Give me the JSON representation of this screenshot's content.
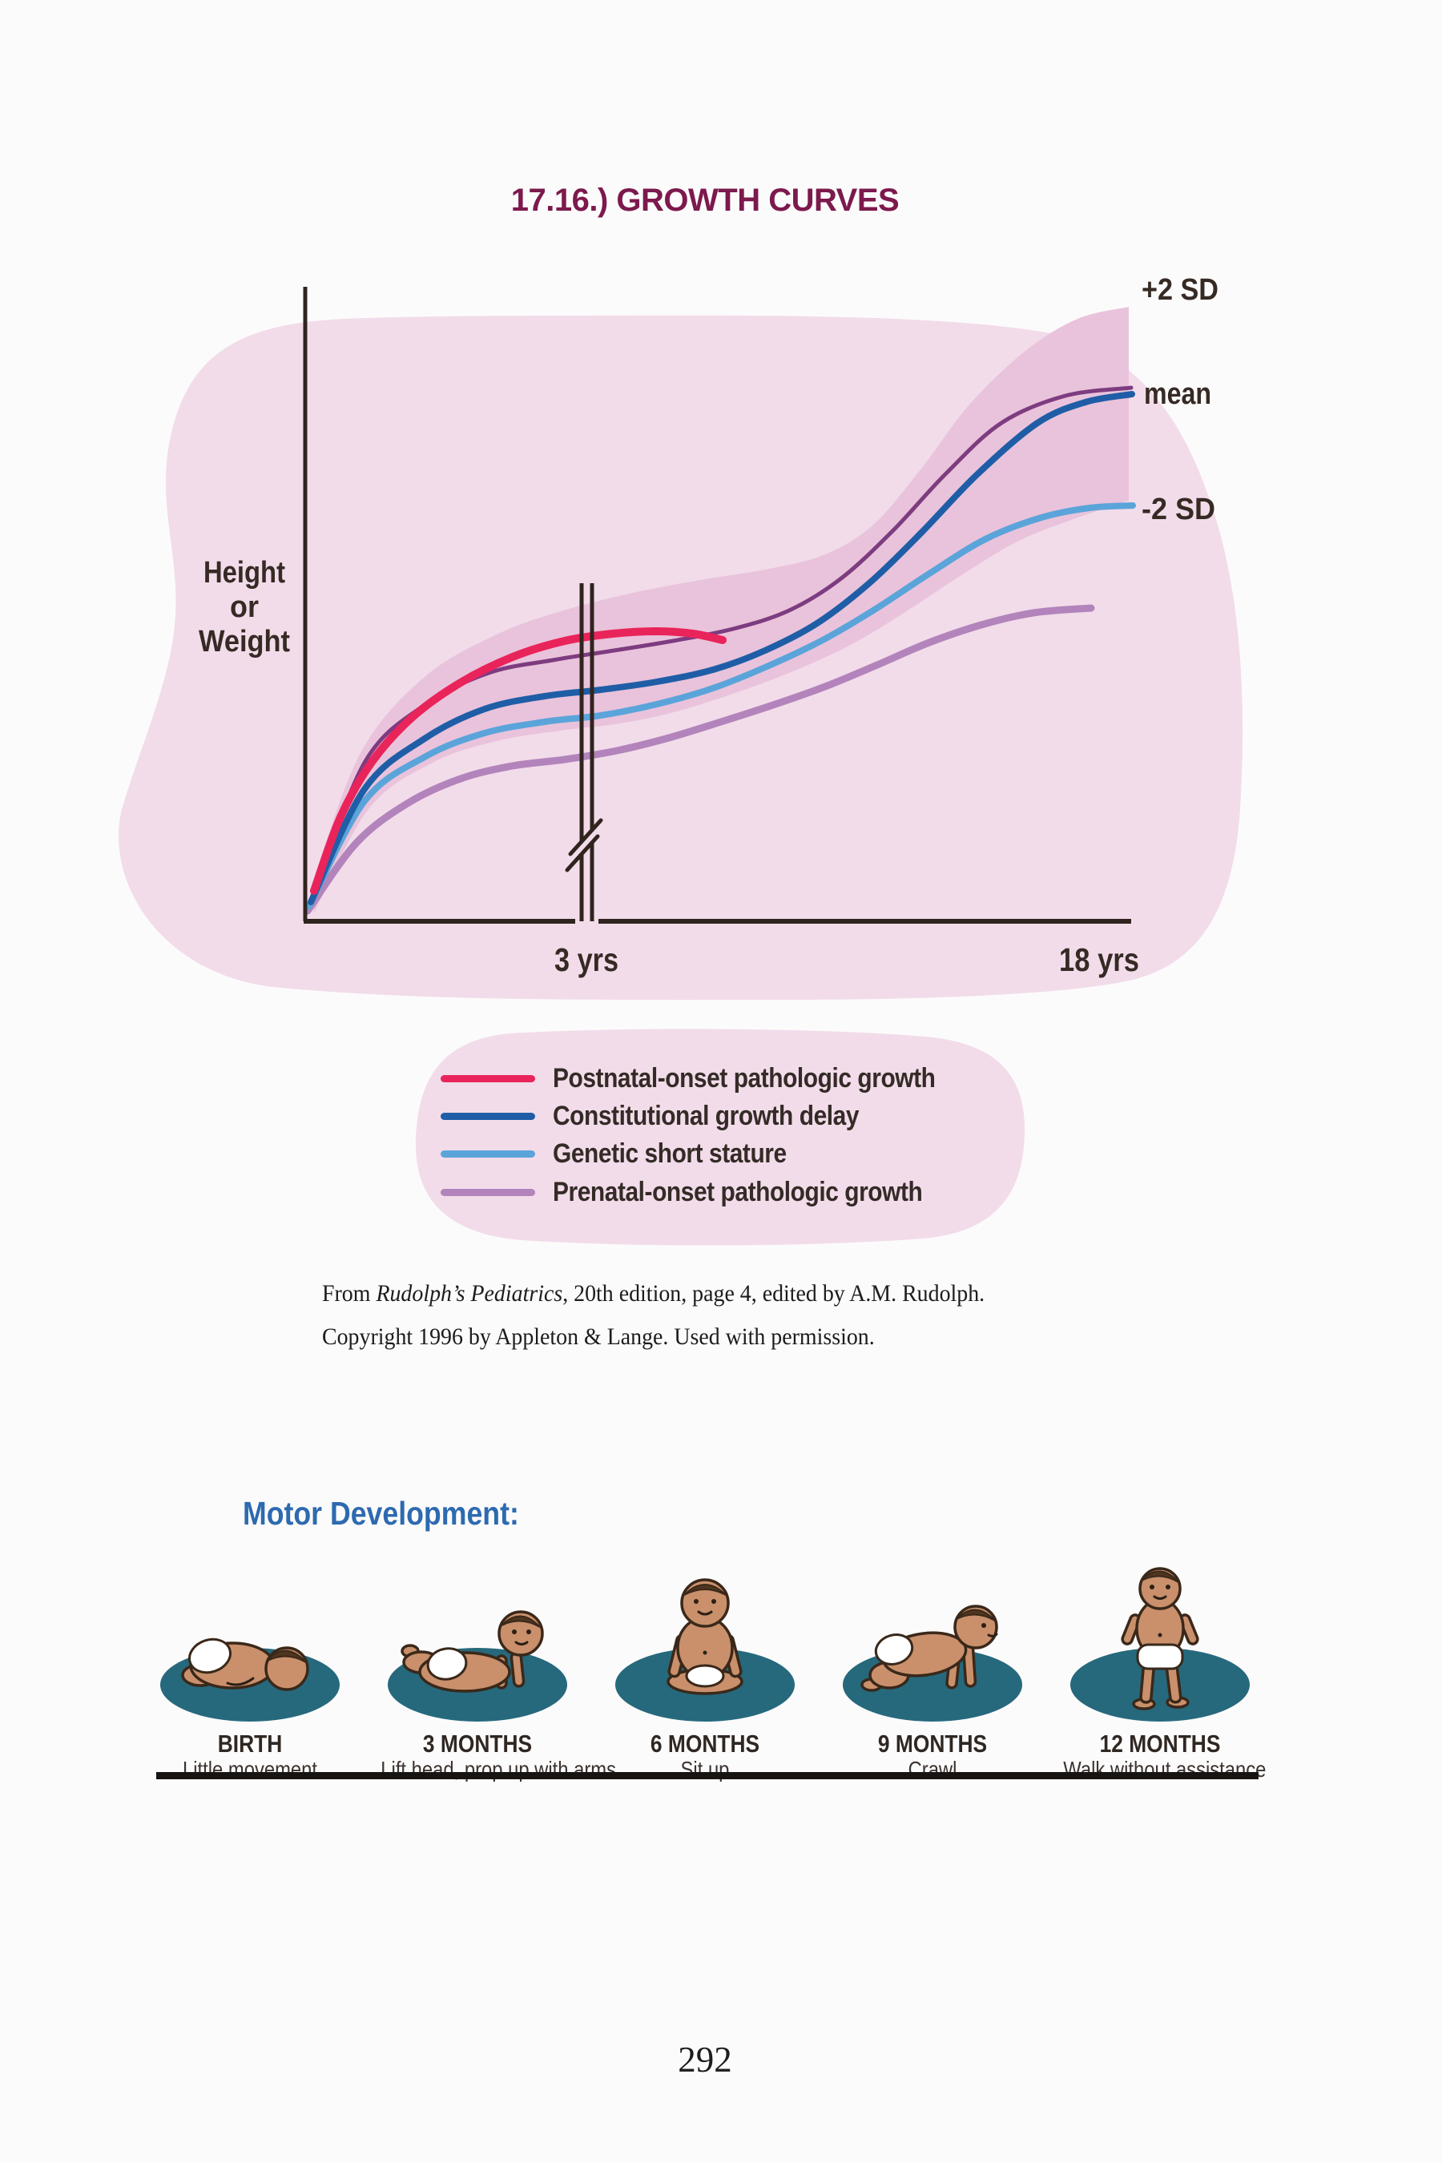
{
  "page": {
    "title": "17.16.) GROWTH CURVES",
    "title_color": "#7c194d",
    "page_number": "292"
  },
  "colors": {
    "blob_pink": "#f2dcea",
    "band_pink": "#e9c3db",
    "axis_ink": "#30241e",
    "text_ink": "#362a24"
  },
  "chart_data": {
    "type": "line",
    "title": "",
    "ylabel": "Height or Weight",
    "ylabel_lines": [
      "Height",
      "or",
      "Weight"
    ],
    "x_ticks": [
      {
        "label": "3 yrs"
      },
      {
        "label": "18 yrs"
      }
    ],
    "annotations": {
      "plus2sd": "+2 SD",
      "mean": "mean",
      "minus2sd": "-2 SD"
    },
    "axis_break_between": [
      "3 yrs",
      "18 yrs"
    ],
    "band": {
      "meaning": "normal range between +2 SD and -2 SD",
      "color": "#e9c3db",
      "top": [
        [
          388,
          1108
        ],
        [
          450,
          940
        ],
        [
          530,
          845
        ],
        [
          620,
          792
        ],
        [
          700,
          763
        ],
        [
          790,
          740
        ],
        [
          880,
          723
        ],
        [
          960,
          710
        ],
        [
          1030,
          692
        ],
        [
          1090,
          655
        ],
        [
          1150,
          585
        ],
        [
          1210,
          505
        ],
        [
          1280,
          438
        ],
        [
          1345,
          398
        ],
        [
          1409,
          383
        ]
      ],
      "bottom": [
        [
          392,
          1140
        ],
        [
          460,
          1010
        ],
        [
          540,
          952
        ],
        [
          620,
          925
        ],
        [
          700,
          912
        ],
        [
          775,
          903
        ],
        [
          845,
          888
        ],
        [
          915,
          866
        ],
        [
          985,
          840
        ],
        [
          1060,
          806
        ],
        [
          1130,
          764
        ],
        [
          1200,
          718
        ],
        [
          1270,
          676
        ],
        [
          1340,
          648
        ],
        [
          1409,
          625
        ]
      ]
    },
    "mean_line": {
      "name": "mean",
      "color": "#7e3c80",
      "points": [
        [
          390,
          1122
        ],
        [
          455,
          952
        ],
        [
          530,
          880
        ],
        [
          610,
          840
        ],
        [
          690,
          824
        ],
        [
          760,
          813
        ],
        [
          840,
          800
        ],
        [
          915,
          785
        ],
        [
          985,
          762
        ],
        [
          1050,
          722
        ],
        [
          1115,
          662
        ],
        [
          1180,
          592
        ],
        [
          1250,
          528
        ],
        [
          1330,
          494
        ],
        [
          1412,
          484
        ]
      ]
    },
    "series": [
      {
        "name": "Postnatal-onset pathologic growth",
        "color": "#e9245a",
        "points": [
          [
            392,
            1112
          ],
          [
            425,
            1020
          ],
          [
            465,
            950
          ],
          [
            515,
            895
          ],
          [
            575,
            852
          ],
          [
            640,
            820
          ],
          [
            705,
            800
          ],
          [
            765,
            791
          ],
          [
            820,
            788
          ],
          [
            865,
            791
          ],
          [
            902,
            799
          ]
        ]
      },
      {
        "name": "Constitutional growth delay",
        "color": "#1f5ea7",
        "points": [
          [
            388,
            1126
          ],
          [
            455,
            985
          ],
          [
            530,
            922
          ],
          [
            605,
            885
          ],
          [
            680,
            869
          ],
          [
            750,
            861
          ],
          [
            820,
            851
          ],
          [
            890,
            836
          ],
          [
            955,
            812
          ],
          [
            1020,
            778
          ],
          [
            1085,
            728
          ],
          [
            1150,
            665
          ],
          [
            1220,
            592
          ],
          [
            1295,
            528
          ],
          [
            1355,
            502
          ],
          [
            1413,
            492
          ]
        ]
      },
      {
        "name": "Genetic short stature",
        "color": "#5ba4da",
        "points": [
          [
            386,
            1131
          ],
          [
            455,
            1000
          ],
          [
            530,
            945
          ],
          [
            605,
            915
          ],
          [
            680,
            901
          ],
          [
            750,
            893
          ],
          [
            820,
            879
          ],
          [
            890,
            859
          ],
          [
            955,
            833
          ],
          [
            1025,
            800
          ],
          [
            1090,
            762
          ],
          [
            1160,
            716
          ],
          [
            1230,
            673
          ],
          [
            1300,
            646
          ],
          [
            1360,
            634
          ],
          [
            1414,
            631
          ]
        ]
      },
      {
        "name": "Prenatal-onset pathologic growth",
        "color": "#b384bc",
        "points": [
          [
            384,
            1137
          ],
          [
            445,
            1052
          ],
          [
            510,
            1002
          ],
          [
            575,
            972
          ],
          [
            640,
            956
          ],
          [
            705,
            948
          ],
          [
            770,
            937
          ],
          [
            835,
            921
          ],
          [
            900,
            901
          ],
          [
            965,
            880
          ],
          [
            1030,
            857
          ],
          [
            1095,
            830
          ],
          [
            1160,
            802
          ],
          [
            1225,
            780
          ],
          [
            1290,
            765
          ],
          [
            1362,
            759
          ]
        ]
      }
    ]
  },
  "legend": {
    "items": [
      {
        "label": "Postnatal-onset pathologic growth",
        "color": "#e9245a"
      },
      {
        "label": "Constitutional growth delay",
        "color": "#1f5ea7"
      },
      {
        "label": "Genetic short stature",
        "color": "#5ba4da"
      },
      {
        "label": "Prenatal-onset pathologic growth",
        "color": "#b384bc"
      }
    ]
  },
  "citation": {
    "prefix": "From ",
    "book_title": "Rudolph’s Pediatrics",
    "suffix": ", 20th edition, page 4, edited by A.M. Rudolph.",
    "line2": "Copyright 1996 by Appleton & Lange. Used with permission."
  },
  "motor": {
    "heading": "Motor Development:",
    "heading_color": "#2d6ab0",
    "rug_color": "#26697d",
    "milestones": [
      {
        "age": "BIRTH",
        "skill": "Little movement",
        "baby_pose": "lying-prone"
      },
      {
        "age": "3 MONTHS",
        "skill": "Lift head, prop up with arms",
        "baby_pose": "prone-head-up"
      },
      {
        "age": "6 MONTHS",
        "skill": "Sit up",
        "baby_pose": "sitting"
      },
      {
        "age": "9 MONTHS",
        "skill": "Crawl",
        "baby_pose": "crawling"
      },
      {
        "age": "12 MONTHS",
        "skill": "Walk without assistance",
        "baby_pose": "standing"
      }
    ]
  }
}
